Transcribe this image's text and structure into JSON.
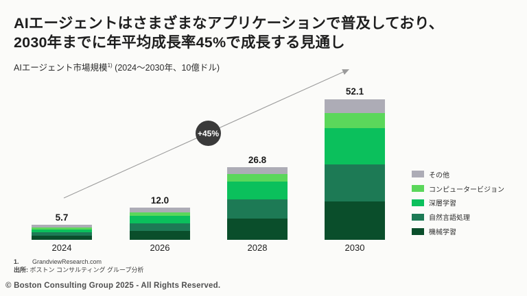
{
  "slide": {
    "title": {
      "line1": "AIエージェントはさまざまなアプリケーションで普及しており、",
      "line2": "2030年までに年平均成長率45%で成長する見通し"
    },
    "subtitle": {
      "label": "AIエージェント市場規模",
      "footnote_marker": "1)",
      "suffix": " (2024〜2030年、10億ドル)"
    },
    "growth_badge": "+45%",
    "footnotes": {
      "number": "1.",
      "text": "GrandviewResearch.com",
      "source_label": "出所:",
      "source_text": "ボストン コンサルティング グループ分析"
    },
    "copyright": "© Boston Consulting Group 2025 - All Rights Reserved."
  },
  "chart_data": {
    "type": "bar",
    "stacked": true,
    "title": "AIエージェント市場規模 (2024〜2030年、10億ドル)",
    "unit": "10億ドル",
    "categories": [
      "2024",
      "2026",
      "2028",
      "2030"
    ],
    "totals": [
      5.7,
      12.0,
      26.8,
      52.1
    ],
    "total_labels": [
      "5.7",
      "12.0",
      "26.8",
      "52.1"
    ],
    "series": [
      {
        "name": "機械学習",
        "color": "#0a4e2b",
        "values": [
          1.6,
          3.2,
          7.9,
          14.1
        ]
      },
      {
        "name": "自然言語処理",
        "color": "#1d7a55",
        "values": [
          1.3,
          2.8,
          7.1,
          13.9
        ]
      },
      {
        "name": "深層学習",
        "color": "#0bc05c",
        "values": [
          1.0,
          3.0,
          6.5,
          13.4
        ]
      },
      {
        "name": "コンピュータービジョン",
        "color": "#5bd75b",
        "values": [
          0.8,
          1.2,
          2.8,
          5.5
        ]
      },
      {
        "name": "その他",
        "color": "#adacb6",
        "values": [
          1.0,
          1.8,
          2.5,
          5.2
        ]
      }
    ],
    "legend_position": "right",
    "legend_order_top_to_bottom": [
      "その他",
      "コンピュータービジョン",
      "深層学習",
      "自然言語処理",
      "機械学習"
    ],
    "cagr": "+45%",
    "ylim": [
      0,
      55
    ],
    "grid": false
  },
  "colors": {
    "background": "#fbfbf9",
    "title_text": "#1e1e1e",
    "badge_bg": "#3a3a3a",
    "badge_text": "#ffffff",
    "arrow": "#9b9b9b"
  }
}
